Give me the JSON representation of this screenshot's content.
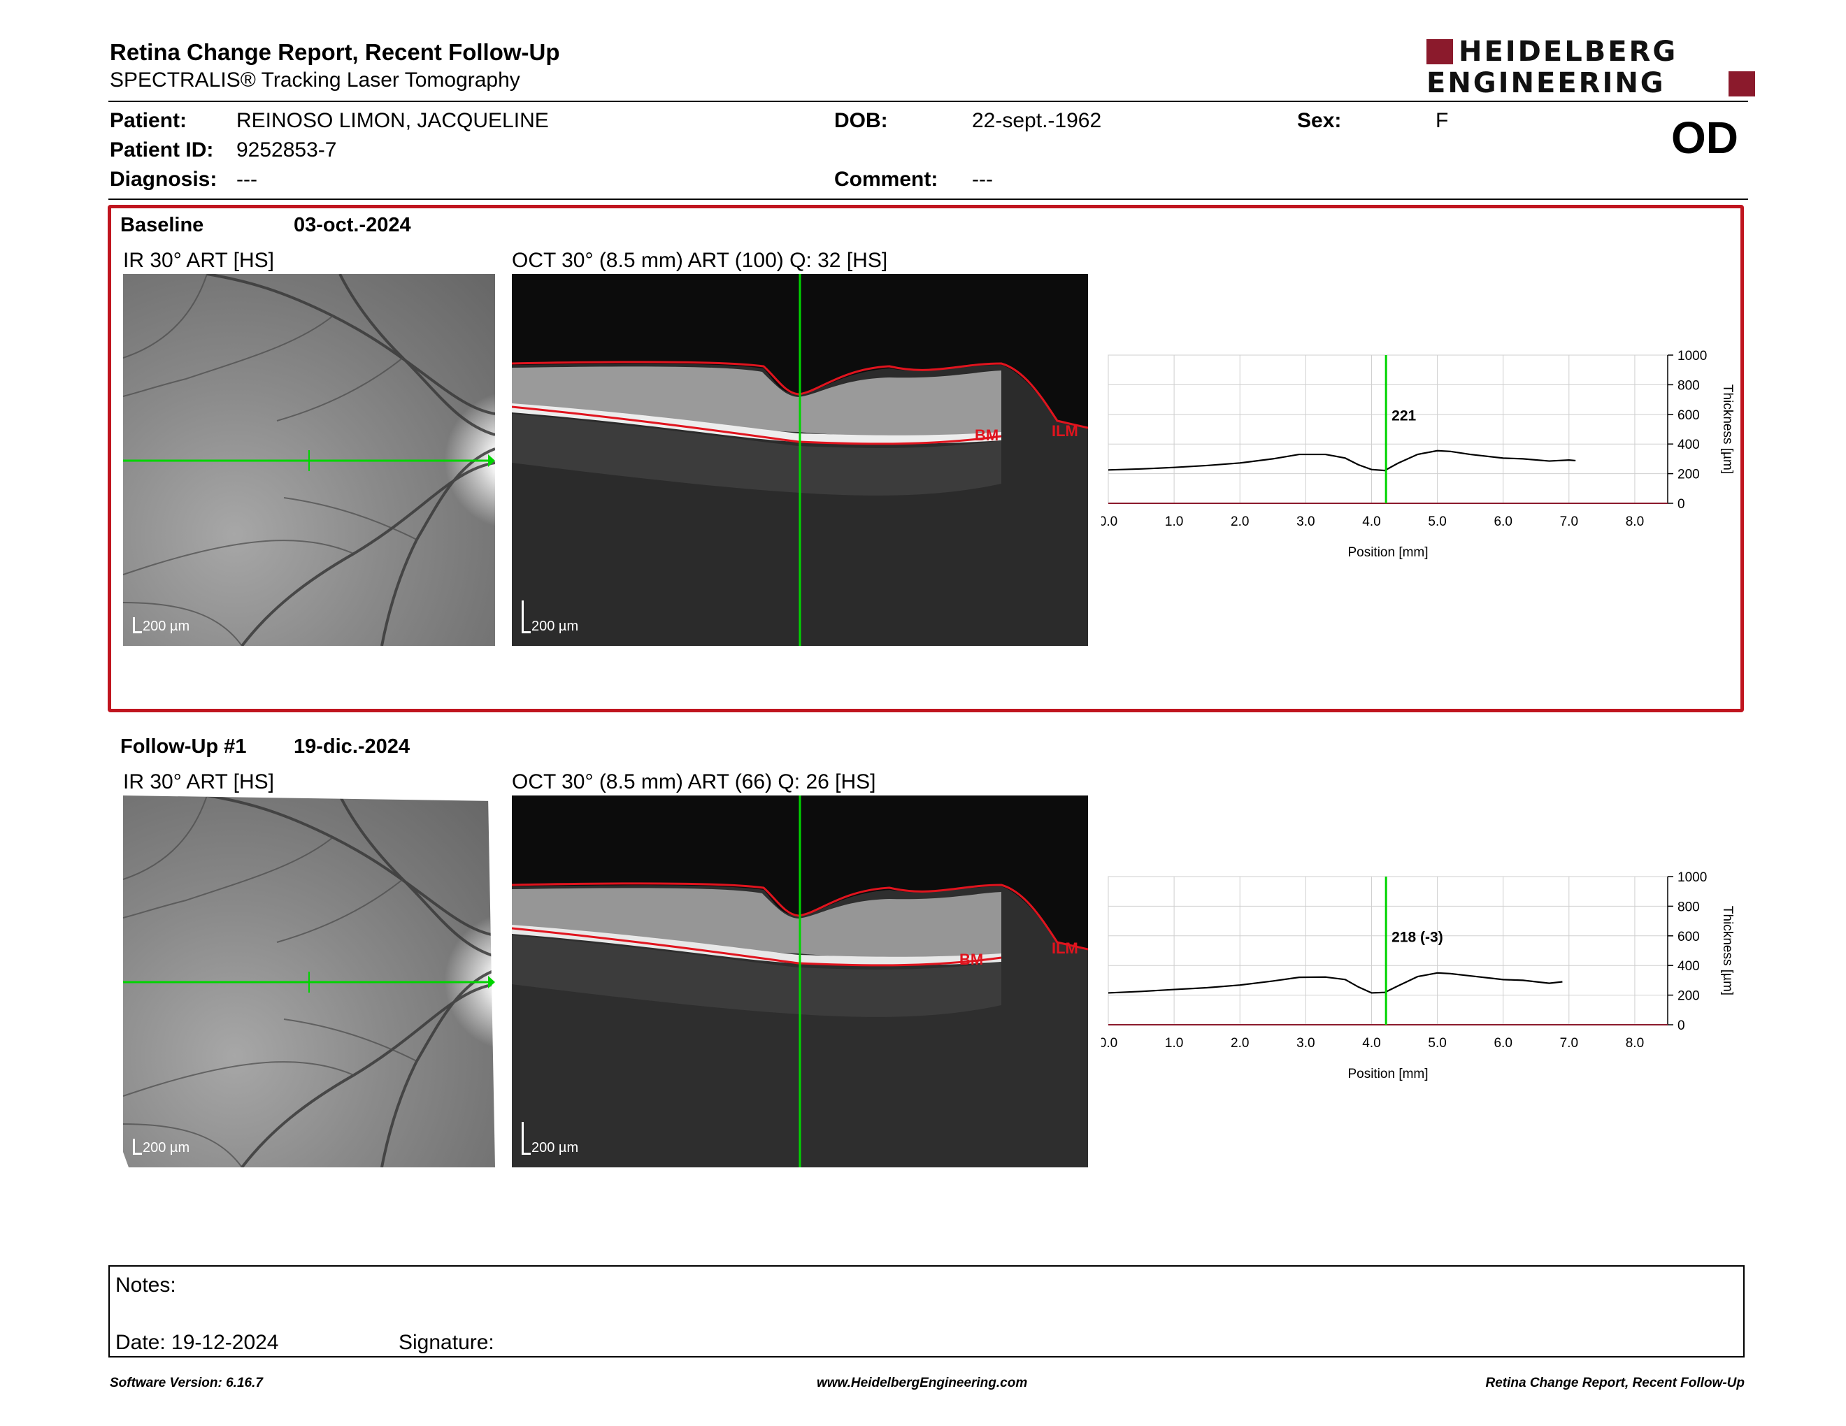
{
  "header": {
    "title": "Retina Change Report, Recent Follow-Up",
    "subtitle": "SPECTRALIS® Tracking Laser Tomography",
    "logo_line1": "HEIDELBERG",
    "logo_line2": "ENGINEERING",
    "eye": "OD"
  },
  "patient": {
    "patient_label": "Patient:",
    "patient_name": "REINOSO LIMON, JACQUELINE",
    "dob_label": "DOB:",
    "dob": "22-sept.-1962",
    "sex_label": "Sex:",
    "sex": "F",
    "id_label": "Patient ID:",
    "id": "9252853-7",
    "diagnosis_label": "Diagnosis:",
    "diagnosis": "---",
    "comment_label": "Comment:",
    "comment": "---"
  },
  "baseline": {
    "label": "Baseline",
    "date": "03-oct.-2024",
    "ir_title": "IR 30° ART [HS]",
    "oct_title": "OCT 30° (8.5 mm) ART (100) Q: 32 [HS]",
    "scale_ir": "200 µm",
    "scale_oct": "200 µm",
    "bm_label": "BM",
    "ilm_label": "ILM",
    "chart_data": {
      "type": "line",
      "xlabel": "Position [mm]",
      "ylabel": "Thickness [µm]",
      "xlim": [
        0,
        8.5
      ],
      "ylim": [
        0,
        1000
      ],
      "x_ticks": [
        "0.0",
        "1.0",
        "2.0",
        "3.0",
        "4.0",
        "5.0",
        "6.0",
        "7.0",
        "8.0"
      ],
      "y_ticks": [
        "0",
        "200",
        "400",
        "600",
        "800",
        "1000"
      ],
      "cursor_x": 4.22,
      "cursor_label": "221",
      "series": [
        {
          "x": [
            0.0,
            0.5,
            1.0,
            1.5,
            2.0,
            2.5,
            2.9,
            3.3,
            3.6,
            3.8,
            4.0,
            4.2,
            4.4,
            4.7,
            5.0,
            5.2,
            5.5,
            6.0,
            6.3,
            6.7,
            7.0,
            7.1
          ],
          "values": [
            225,
            232,
            242,
            255,
            272,
            300,
            330,
            330,
            305,
            260,
            228,
            221,
            270,
            330,
            355,
            350,
            330,
            305,
            300,
            285,
            292,
            288
          ]
        }
      ],
      "line_color": "#000000",
      "cursor_color": "#00d400"
    }
  },
  "followup": {
    "label": "Follow-Up #1",
    "date": "19-dic.-2024",
    "ir_title": "IR 30° ART [HS]",
    "oct_title": "OCT 30° (8.5 mm) ART (66) Q: 26 [HS]",
    "scale_ir": "200 µm",
    "scale_oct": "200 µm",
    "bm_label": "BM",
    "ilm_label": "ILM",
    "chart_data": {
      "type": "line",
      "xlabel": "Position [mm]",
      "ylabel": "Thickness [µm]",
      "xlim": [
        0,
        8.5
      ],
      "ylim": [
        0,
        1000
      ],
      "x_ticks": [
        "0.0",
        "1.0",
        "2.0",
        "3.0",
        "4.0",
        "5.0",
        "6.0",
        "7.0",
        "8.0"
      ],
      "y_ticks": [
        "0",
        "200",
        "400",
        "600",
        "800",
        "1000"
      ],
      "cursor_x": 4.22,
      "cursor_label": "218 (-3)",
      "series": [
        {
          "x": [
            0.0,
            0.5,
            1.0,
            1.5,
            2.0,
            2.5,
            2.9,
            3.3,
            3.6,
            3.8,
            4.0,
            4.2,
            4.4,
            4.7,
            5.0,
            5.2,
            5.5,
            6.0,
            6.3,
            6.7,
            6.9
          ],
          "values": [
            215,
            225,
            238,
            250,
            268,
            295,
            320,
            322,
            305,
            255,
            215,
            218,
            262,
            325,
            350,
            345,
            330,
            305,
            300,
            280,
            290
          ]
        }
      ],
      "line_color": "#000000",
      "cursor_color": "#00d400"
    }
  },
  "notes": {
    "notes_label": "Notes:",
    "date_label": "Date: 19-12-2024",
    "signature_label": "Signature:"
  },
  "footer": {
    "software": "Software Version: 6.16.7",
    "website": "www.HeidelbergEngineering.com",
    "report_name": "Retina Change Report, Recent Follow-Up"
  },
  "colors": {
    "brand": "#8b1a2c",
    "selection_frame": "#c0151f",
    "scan_line": "#00d400",
    "segmentation": "#e0141e"
  }
}
